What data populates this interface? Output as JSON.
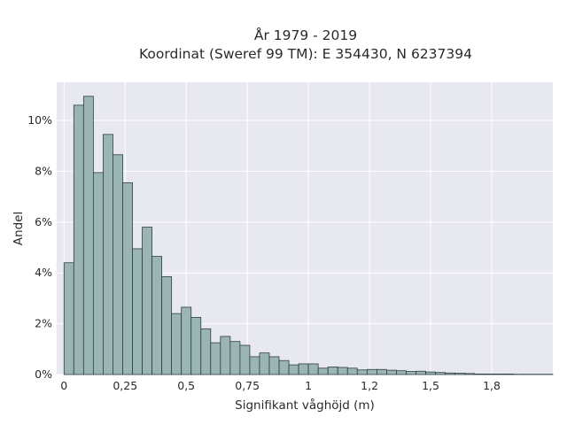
{
  "chart_data": {
    "type": "bar",
    "title_lines": [
      "År 1979 - 2019",
      "Koordinat (Sweref 99 TM): E 354430, N 6237394"
    ],
    "xlabel": "Signifikant våghöjd (m)",
    "ylabel": "Andel",
    "xlim": [
      -0.03,
      2.0
    ],
    "ylim": [
      0,
      11.5
    ],
    "x_ticks": [
      {
        "value": 0,
        "label": "0"
      },
      {
        "value": 0.25,
        "label": "0,25"
      },
      {
        "value": 0.5,
        "label": "0,5"
      },
      {
        "value": 0.75,
        "label": "0,75"
      },
      {
        "value": 1,
        "label": "1"
      },
      {
        "value": 1.25,
        "label": "1,2"
      },
      {
        "value": 1.5,
        "label": "1,5"
      },
      {
        "value": 1.75,
        "label": "1,8"
      }
    ],
    "y_ticks": [
      {
        "value": 0,
        "label": "0%"
      },
      {
        "value": 2,
        "label": "2%"
      },
      {
        "value": 4,
        "label": "4%"
      },
      {
        "value": 6,
        "label": "6%"
      },
      {
        "value": 8,
        "label": "8%"
      },
      {
        "value": 10,
        "label": "10%"
      }
    ],
    "grid": true,
    "bin_start": 0.0,
    "bin_width": 0.04,
    "values_percent": [
      4.4,
      10.6,
      10.95,
      7.95,
      9.45,
      8.65,
      7.55,
      4.95,
      5.8,
      4.65,
      3.85,
      2.4,
      2.65,
      2.25,
      1.8,
      1.25,
      1.5,
      1.3,
      1.15,
      0.7,
      0.85,
      0.7,
      0.55,
      0.38,
      0.42,
      0.42,
      0.25,
      0.3,
      0.28,
      0.25,
      0.18,
      0.2,
      0.2,
      0.17,
      0.15,
      0.12,
      0.13,
      0.1,
      0.08,
      0.06,
      0.05,
      0.04,
      0.02,
      0.02,
      0.02,
      0.02,
      0.01,
      0.01,
      0.01,
      0.01
    ],
    "bar_color": "#9bb5b5",
    "bar_edge_color": "#2f3f3f",
    "plot_background": "#e8e8f0",
    "grid_color": "#ffffff"
  }
}
